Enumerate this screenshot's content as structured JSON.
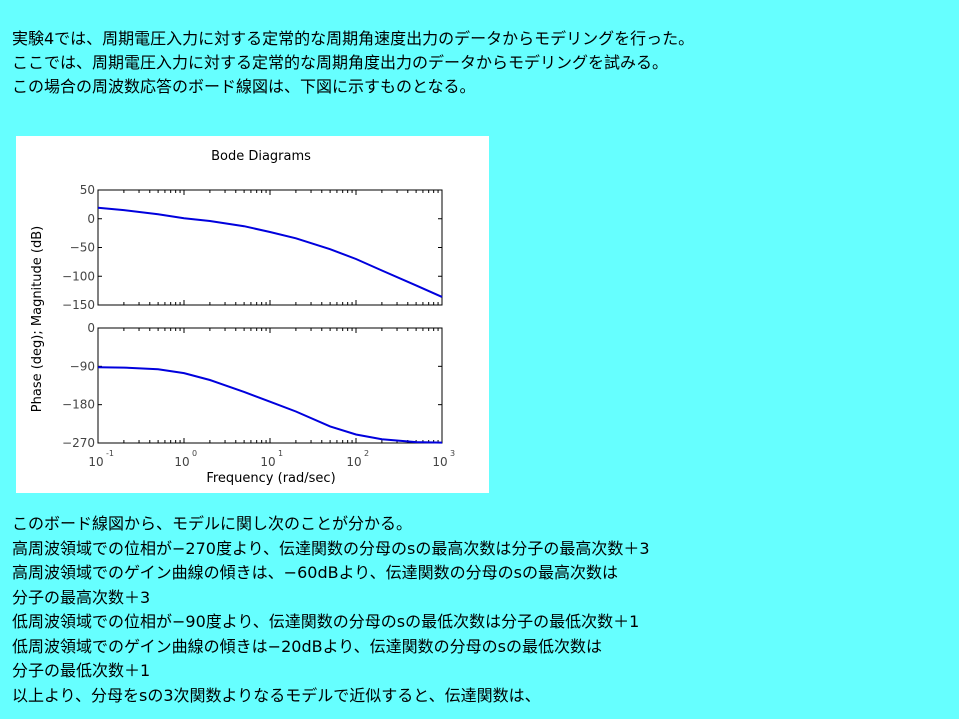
{
  "intro": [
    "実験4では、周期電圧入力に対する定常的な周期角速度出力のデータからモデリングを行った。",
    "ここでは、周期電圧入力に対する定常的な周期角度出力のデータからモデリングを試みる。",
    "この場合の周波数応答のボード線図は、下図に示すものとなる。"
  ],
  "chart_data": {
    "type": "line",
    "title": "Bode Diagrams",
    "xlabel": "Frequency (rad/sec)",
    "ylabel": "Phase (deg); Magnitude (dB)",
    "x_scale": "log",
    "xlim": [
      0.1,
      1000
    ],
    "x_ticks": [
      {
        "base": "10",
        "exp": "-1",
        "value": 0.1
      },
      {
        "base": "10",
        "exp": "0",
        "value": 1
      },
      {
        "base": "10",
        "exp": "1",
        "value": 10
      },
      {
        "base": "10",
        "exp": "2",
        "value": 100
      },
      {
        "base": "10",
        "exp": "3",
        "value": 1000
      }
    ],
    "grid": false,
    "line_color": "#0000dd",
    "magnitude": {
      "ylim": [
        -150,
        50
      ],
      "yticks": [
        "50",
        "0",
        "−50",
        "−100",
        "−150"
      ],
      "ytick_values": [
        50,
        0,
        -50,
        -100,
        -150
      ],
      "points": [
        [
          0.1,
          19
        ],
        [
          0.2,
          15
        ],
        [
          0.5,
          8
        ],
        [
          1,
          1
        ],
        [
          2,
          -4
        ],
        [
          5,
          -13
        ],
        [
          10,
          -23
        ],
        [
          20,
          -34
        ],
        [
          50,
          -53
        ],
        [
          100,
          -70
        ],
        [
          200,
          -90
        ],
        [
          500,
          -116
        ],
        [
          1000,
          -136
        ]
      ]
    },
    "phase": {
      "ylim": [
        -270,
        0
      ],
      "yticks": [
        "0",
        "−90",
        "−180",
        "−270"
      ],
      "ytick_values": [
        0,
        -90,
        -180,
        -270
      ],
      "points": [
        [
          0.1,
          -92
        ],
        [
          0.2,
          -93
        ],
        [
          0.5,
          -97
        ],
        [
          1,
          -106
        ],
        [
          2,
          -122
        ],
        [
          5,
          -150
        ],
        [
          10,
          -173
        ],
        [
          20,
          -196
        ],
        [
          50,
          -231
        ],
        [
          100,
          -250
        ],
        [
          200,
          -261
        ],
        [
          500,
          -268
        ],
        [
          1000,
          -269
        ]
      ]
    }
  },
  "notes": [
    "このボード線図から、モデルに関し次のことが分かる。",
    "高周波領域での位相が−270度より、伝達関数の分母のsの最高次数は分子の最高次数＋3",
    "高周波領域でのゲイン曲線の傾きは、−60dBより、伝達関数の分母のsの最高次数は",
    "分子の最高次数＋3",
    "低周波領域での位相が−90度より、伝達関数の分母のsの最低次数は分子の最低次数＋1",
    "低周波領域でのゲイン曲線の傾きは−20dBより、伝達関数の分母のsの最低次数は",
    "分子の最低次数＋1",
    "以上より、分母をsの3次関数よりなるモデルで近似すると、伝達関数は、"
  ]
}
